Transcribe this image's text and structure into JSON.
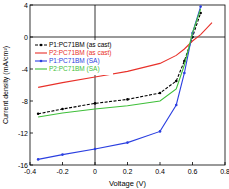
{
  "chart_data": {
    "type": "line",
    "x_label": "Voltage (V)",
    "y_label": "Current density (mA/cm²)",
    "x": [
      -0.35,
      -0.2,
      0,
      0.2,
      0.4,
      0.5,
      0.55,
      0.6,
      0.65,
      0.72
    ],
    "series": [
      {
        "name": "P1:PC71BM (as cast)",
        "color": "#000000",
        "marker": "circle",
        "line_style": "dashed",
        "values": [
          -9.6,
          -9.0,
          -8.3,
          -7.8,
          -7.0,
          -5.5,
          -3.0,
          0.0,
          3.0,
          null
        ]
      },
      {
        "name": "P2:PC71BM (as cast)",
        "color": "#e8312a",
        "marker": "none",
        "line_style": "solid",
        "values": [
          -6.3,
          -5.7,
          -5.0,
          -4.3,
          -3.3,
          -2.3,
          -1.5,
          -0.5,
          0.3,
          1.8
        ]
      },
      {
        "name": "P1:PC71BM (SA)",
        "color": "#2b3fe0",
        "marker": "circle",
        "line_style": "solid",
        "values": [
          -15.3,
          -14.7,
          -14.0,
          -13.2,
          -11.8,
          -8.5,
          -4.5,
          0.5,
          3.8,
          null
        ]
      },
      {
        "name": "P2:PC71BM (SA)",
        "color": "#3fbf3a",
        "marker": "none",
        "line_style": "solid",
        "values": [
          -10.0,
          -9.5,
          -9.0,
          -8.6,
          -8.0,
          -6.5,
          -3.5,
          0.5,
          3.5,
          null
        ]
      }
    ],
    "xlim": [
      -0.4,
      0.8
    ],
    "ylim": [
      -16,
      4
    ],
    "xticks": [
      -0.4,
      -0.2,
      0,
      0.2,
      0.4,
      0.6,
      0.8
    ],
    "yticks": [
      -16,
      -12,
      -8,
      -4,
      0,
      4
    ],
    "legend": "upper left",
    "grid": false
  }
}
